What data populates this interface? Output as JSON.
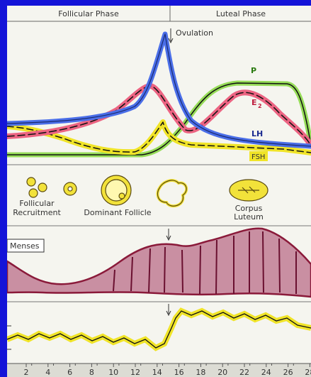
{
  "header": {
    "follicular": "Follicular Phase",
    "luteal": "Luteal Phase"
  },
  "hormones": {
    "ovulation": "Ovulation",
    "labels": {
      "p": "P",
      "e2": "E",
      "e2_sub": "2",
      "lh": "LH",
      "fsh": "FSH"
    }
  },
  "follicles": {
    "recruitment": [
      "Follicular",
      "Recruitment"
    ],
    "dominant": "Dominant Follicle",
    "corpus": [
      "Corpus",
      "Luteum"
    ]
  },
  "endometrium": {
    "menses": "Menses"
  },
  "axis": {
    "days": [
      2,
      4,
      6,
      8,
      10,
      12,
      14,
      16,
      18,
      20,
      22,
      24,
      26,
      28
    ]
  }
}
